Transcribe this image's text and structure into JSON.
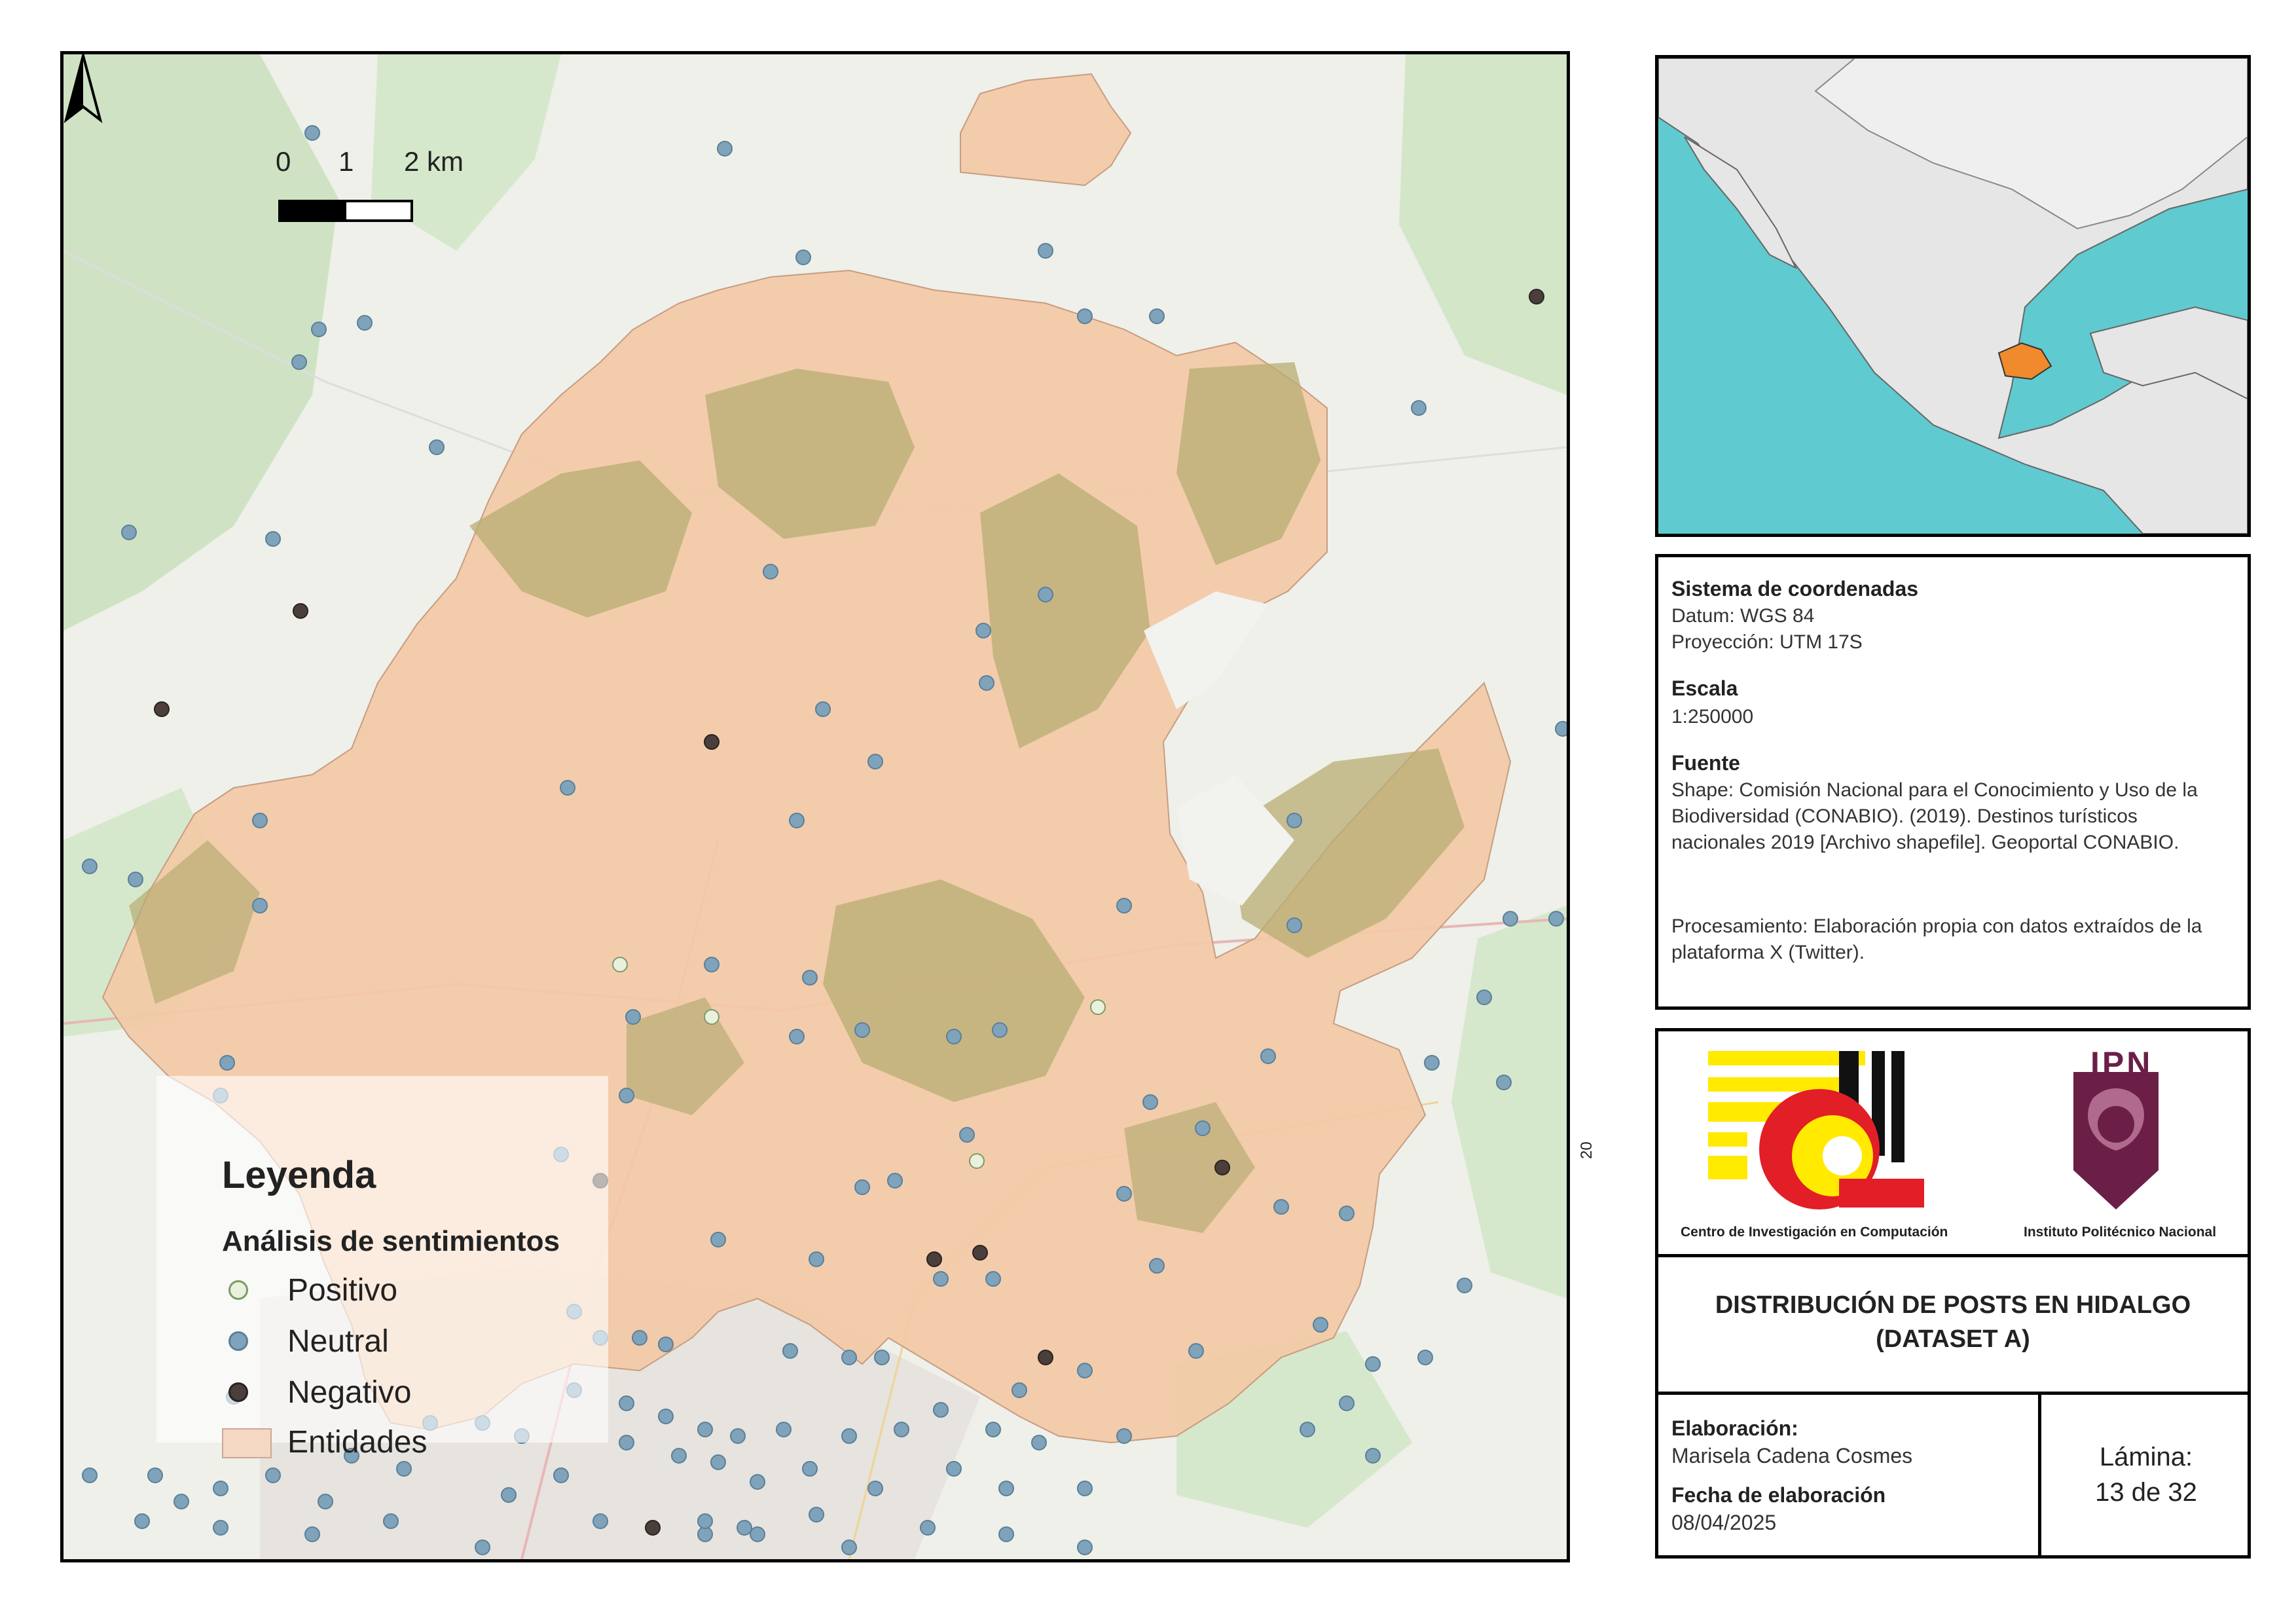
{
  "legend": {
    "title": "Leyenda",
    "subtitle": "Análisis de sentimientos",
    "items": [
      {
        "label": "Positivo",
        "fill": "#e9f0dc",
        "stroke": "#7c9a6a"
      },
      {
        "label": "Neutral",
        "fill": "#7ea3bb",
        "stroke": "#5b7f98"
      },
      {
        "label": "Negativo",
        "fill": "#4a3f3b",
        "stroke": "#2a2220"
      },
      {
        "label": "Entidades",
        "fill": "#f4d8c4",
        "stroke": "#c9a898"
      }
    ]
  },
  "scale_bar": {
    "labels": [
      "0",
      "1",
      "2 km"
    ]
  },
  "side_number": "20",
  "info": {
    "crs_heading": "Sistema de coordenadas",
    "datum": "Datum: WGS 84",
    "projection": "Proyección: UTM 17S",
    "scale_heading": "Escala",
    "scale_value": "1:250000",
    "source_heading": "Fuente",
    "source_text": "Shape: Comisión Nacional para el Conocimiento y Uso de la Biodiversidad (CONABIO). (2019). Destinos turísticos nacionales 2019 [Archivo shapefile]. Geoportal CONABIO.",
    "processing_text": "Procesamiento: Elaboración propia con datos extraídos de la plataforma X (Twitter)."
  },
  "logos": {
    "cic_caption": "Centro de Investigación en Computación",
    "ipn_caption": "Instituto Politécnico Nacional",
    "ipn_mark": "IPN"
  },
  "title_block": {
    "title_line1": "DISTRIBUCIÓN DE POSTS EN HIDALGO",
    "title_line2": "(DATASET A)",
    "author_heading": "Elaboración:",
    "author": "Marisela Cadena Cosmes",
    "date_heading": "Fecha de elaboración",
    "date": "08/04/2025",
    "sheet_label": "Lámina:",
    "sheet_number": "13 de 32"
  },
  "colors": {
    "state_fill": "#f3c9a6",
    "vegetation": "#b8ad73",
    "forest_base": "#cfe3c4",
    "sea": "#5fcad0",
    "highlight_state": "#f08a2c"
  }
}
